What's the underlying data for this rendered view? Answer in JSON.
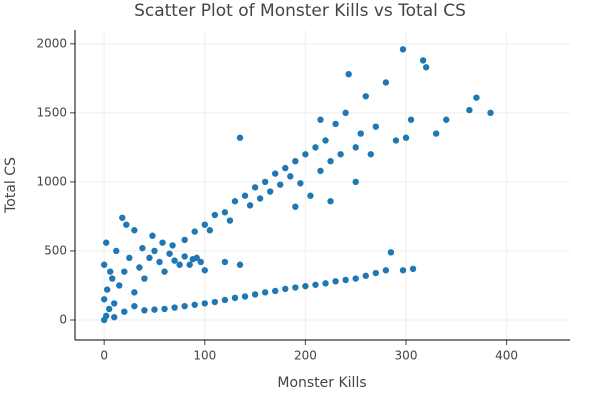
{
  "chart_data": {
    "type": "scatter",
    "title": "Scatter Plot of Monster Kills vs Total CS",
    "x_label": "Monster Kills",
    "y_label": "Total CS",
    "color": "#1f77b4",
    "grid": true,
    "xlim": [
      -29,
      463
    ],
    "ylim": [
      -145,
      2100
    ],
    "xticks": [
      0,
      100,
      200,
      300,
      400
    ],
    "yticks": [
      0,
      500,
      1000,
      1500,
      2000
    ],
    "x": [
      0,
      2,
      5,
      0,
      3,
      8,
      0,
      2,
      10,
      15,
      20,
      25,
      12,
      30,
      35,
      40,
      45,
      50,
      55,
      60,
      65,
      70,
      75,
      80,
      85,
      88,
      18,
      22,
      30,
      48,
      10,
      20,
      30,
      6,
      38,
      58,
      68,
      92,
      96,
      100,
      40,
      50,
      60,
      70,
      80,
      90,
      100,
      110,
      120,
      130,
      140,
      150,
      160,
      170,
      180,
      190,
      200,
      210,
      220,
      230,
      240,
      250,
      260,
      270,
      280,
      285,
      297,
      307,
      120,
      135,
      80,
      90,
      100,
      105,
      110,
      120,
      125,
      130,
      135,
      140,
      145,
      150,
      155,
      160,
      165,
      170,
      175,
      180,
      185,
      190,
      195,
      200,
      205,
      210,
      215,
      220,
      225,
      230,
      235,
      240,
      243,
      250,
      255,
      260,
      265,
      270,
      280,
      290,
      297,
      300,
      305,
      317,
      320,
      330,
      340,
      363,
      370,
      384,
      250,
      225,
      190,
      215
    ],
    "y": [
      0,
      30,
      80,
      150,
      220,
      300,
      400,
      560,
      120,
      250,
      350,
      450,
      500,
      200,
      380,
      300,
      450,
      500,
      420,
      350,
      480,
      430,
      400,
      460,
      400,
      440,
      740,
      690,
      650,
      610,
      20,
      60,
      100,
      350,
      520,
      560,
      540,
      450,
      420,
      360,
      70,
      75,
      80,
      90,
      100,
      110,
      120,
      130,
      145,
      160,
      170,
      185,
      200,
      210,
      225,
      235,
      245,
      255,
      265,
      280,
      290,
      300,
      320,
      340,
      360,
      490,
      360,
      370,
      420,
      400,
      580,
      640,
      690,
      650,
      760,
      780,
      720,
      860,
      1320,
      900,
      830,
      960,
      880,
      1000,
      930,
      1060,
      980,
      1100,
      1040,
      1150,
      990,
      1200,
      900,
      1250,
      1080,
      1300,
      1150,
      1420,
      1200,
      1500,
      1780,
      1250,
      1350,
      1620,
      1200,
      1400,
      1720,
      1300,
      1960,
      1320,
      1450,
      1880,
      1830,
      1350,
      1450,
      1520,
      1610,
      1500,
      1000,
      860,
      820,
      1450
    ]
  }
}
